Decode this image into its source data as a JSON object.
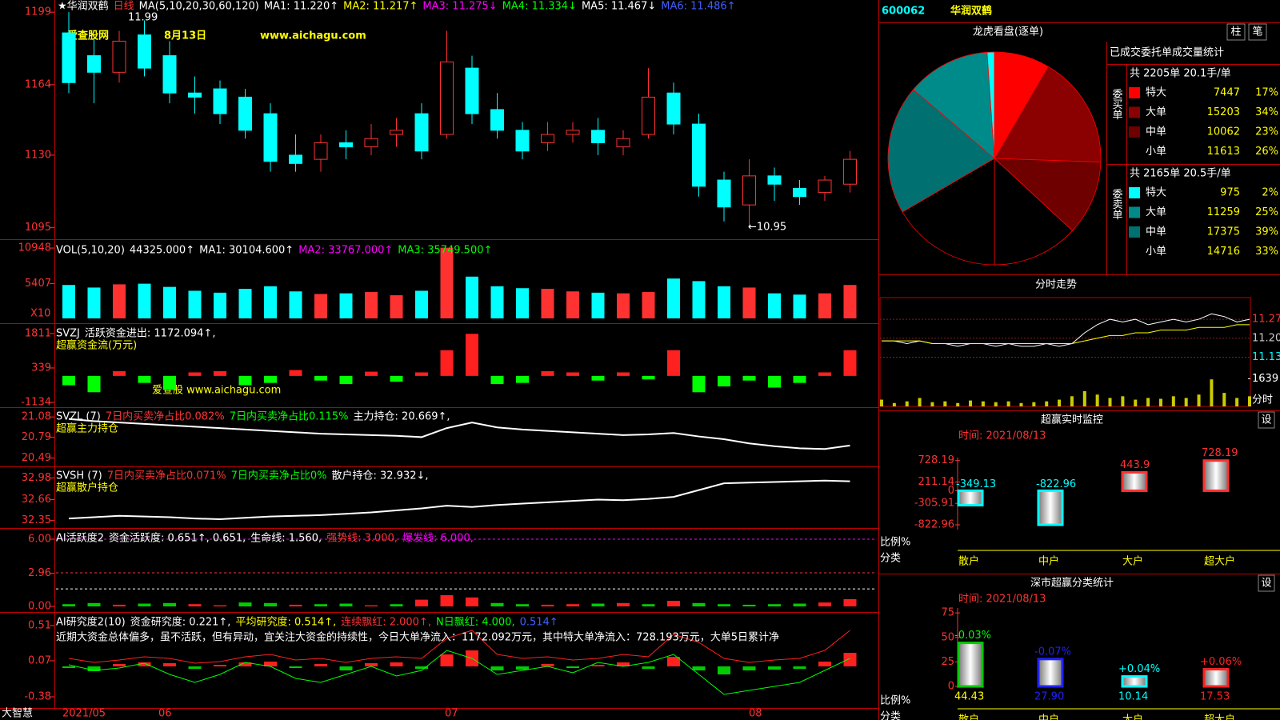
{
  "header": {
    "stock_name": "★华润双鹤",
    "period": "日线",
    "ma_params": "MA(5,10,20,30,60,120)",
    "ma": [
      {
        "text": "MA1: 11.220↑",
        "color": "#ffffff"
      },
      {
        "text": "MA2: 11.217↑",
        "color": "#ffff00"
      },
      {
        "text": "MA3: 11.275↓",
        "color": "#ff00ff"
      },
      {
        "text": "MA4: 11.334↓",
        "color": "#00ff00"
      },
      {
        "text": "MA5: 11.467↓",
        "color": "#ffffff"
      },
      {
        "text": "MA6: 11.486↑",
        "color": "#4060ff"
      }
    ]
  },
  "watermark": {
    "site": "爱查股网",
    "date": "8月13日",
    "url": "www.aichagu.com",
    "small": "爱查股 www.aichagu.com"
  },
  "price_chart": {
    "type": "candlestick",
    "ylim": [
      1091,
      1201
    ],
    "yticks": [
      1199,
      1164,
      1130,
      1095
    ],
    "high_label": "11.99",
    "low_label": "←10.95",
    "up_color": "#ff3232",
    "down_color": "#00ffff",
    "open": [
      1189,
      1178,
      1170,
      1188,
      1178,
      1160,
      1162,
      1158,
      1150,
      1130,
      1128,
      1136,
      1134,
      1140,
      1150,
      1140,
      1172,
      1152,
      1142,
      1136,
      1140,
      1142,
      1134,
      1140,
      1160,
      1145,
      1118,
      1106,
      1120,
      1114,
      1112,
      1116
    ],
    "close": [
      1165,
      1170,
      1185,
      1172,
      1160,
      1158,
      1150,
      1142,
      1127,
      1126,
      1136,
      1134,
      1138,
      1142,
      1132,
      1175,
      1150,
      1142,
      1132,
      1140,
      1142,
      1136,
      1138,
      1158,
      1145,
      1115,
      1105,
      1120,
      1116,
      1110,
      1118,
      1128
    ],
    "high": [
      1199,
      1186,
      1190,
      1195,
      1185,
      1168,
      1166,
      1162,
      1155,
      1140,
      1140,
      1142,
      1145,
      1148,
      1155,
      1190,
      1178,
      1160,
      1146,
      1146,
      1146,
      1148,
      1142,
      1172,
      1165,
      1150,
      1122,
      1128,
      1124,
      1118,
      1120,
      1132
    ],
    "low": [
      1160,
      1155,
      1165,
      1168,
      1155,
      1150,
      1145,
      1138,
      1122,
      1122,
      1122,
      1128,
      1130,
      1134,
      1128,
      1138,
      1145,
      1138,
      1128,
      1132,
      1136,
      1130,
      1130,
      1138,
      1140,
      1110,
      1098,
      1095,
      1108,
      1106,
      1108,
      1112
    ]
  },
  "vol": {
    "type": "bar",
    "label": "VOL(5,10,20)",
    "unit": "X10",
    "ylim": [
      0,
      11700
    ],
    "yticks": [
      10948,
      5407
    ],
    "items": [
      {
        "text": "44325.000↑",
        "color": "#ffffff"
      },
      {
        "text": "MA1: 30104.600↑",
        "color": "#ffffff"
      },
      {
        "text": "MA2: 33767.000↑",
        "color": "#ff00ff"
      },
      {
        "text": "MA3: 35749.500↑",
        "color": "#00ff00"
      }
    ],
    "values": [
      5200,
      4800,
      5300,
      5400,
      4900,
      4300,
      4000,
      4600,
      5000,
      4200,
      3800,
      3900,
      4100,
      3600,
      4300,
      11000,
      6500,
      5000,
      4700,
      4600,
      4200,
      4000,
      3900,
      4100,
      6200,
      5800,
      5000,
      4800,
      3900,
      3700,
      3900,
      5200
    ]
  },
  "svzj": {
    "type": "bar",
    "label": "SVZJ",
    "title": "超赢资金流(万元)",
    "ylim": [
      -1340,
      2255
    ],
    "yticks": [
      1811,
      339,
      -1134
    ],
    "items": [
      {
        "text": "活跃资金进出: 1172.094↑,",
        "color": "#ffffff"
      }
    ],
    "values": [
      -400,
      -700,
      200,
      -300,
      -600,
      150,
      200,
      -400,
      -300,
      250,
      -200,
      -350,
      180,
      -250,
      150,
      1100,
      1800,
      -350,
      -300,
      200,
      150,
      -200,
      150,
      -150,
      1100,
      -700,
      -450,
      -200,
      -500,
      -300,
      150,
      1100
    ]
  },
  "svzl": {
    "type": "line",
    "label": "SVZL (7)",
    "title": "超赢主力持仓",
    "ylim": [
      20.37,
      21.22
    ],
    "yticks": [
      21.08,
      20.79,
      20.49
    ],
    "items": [
      {
        "text": "7日内买卖净占比0.082%",
        "color": "#ff3232"
      },
      {
        "text": "7日内买卖净占比0.115%",
        "color": "#00ff00"
      },
      {
        "text": "主力持仓: 20.669↑,",
        "color": "#ffffff"
      }
    ],
    "values": [
      21.05,
      21.02,
      21.0,
      20.98,
      20.96,
      20.94,
      20.92,
      20.9,
      20.88,
      20.86,
      20.84,
      20.83,
      20.82,
      20.81,
      20.79,
      20.92,
      21.0,
      20.93,
      20.9,
      20.88,
      20.86,
      20.84,
      20.82,
      20.83,
      20.85,
      20.8,
      20.76,
      20.7,
      20.66,
      20.63,
      20.62,
      20.67
    ]
  },
  "svsh": {
    "type": "line",
    "label": "SVSH (7)",
    "title": "超赢散户持仓",
    "ylim": [
      32.24,
      33.15
    ],
    "yticks": [
      32.98,
      32.66,
      32.35
    ],
    "items": [
      {
        "text": "7日内买卖净占比0.071%",
        "color": "#ff3232"
      },
      {
        "text": "7日内买卖净占比0%",
        "color": "#00ff00"
      },
      {
        "text": "散户持仓: 32.932↓,",
        "color": "#ffffff"
      }
    ],
    "values": [
      32.38,
      32.4,
      32.42,
      32.41,
      32.4,
      32.38,
      32.37,
      32.39,
      32.41,
      32.42,
      32.43,
      32.45,
      32.47,
      32.5,
      32.53,
      32.57,
      32.55,
      32.58,
      32.6,
      32.62,
      32.64,
      32.66,
      32.65,
      32.67,
      32.7,
      32.8,
      32.9,
      32.91,
      32.92,
      32.93,
      32.94,
      32.93
    ]
  },
  "ai_active": {
    "type": "bar",
    "label": "AI活跃度2",
    "ylim": [
      -0.5,
      7.0
    ],
    "yticks": [
      {
        "value": 6,
        "label": "6.00"
      },
      2.96,
      {
        "value": 0,
        "label": "0.00"
      }
    ],
    "items": [
      {
        "text": "资金活跃度: 0.651↑, 0.651,",
        "color": "#ffffff"
      },
      {
        "text": "生命线: 1.560,",
        "color": "#ffffff",
        "value": 1.56
      },
      {
        "text": "强势线: 3.000,",
        "color": "#ff3232",
        "value": 3
      },
      {
        "text": "爆发线: 6.000,",
        "color": "#ff00ff",
        "value": 6
      }
    ],
    "values": [
      0.2,
      0.3,
      0.15,
      0.25,
      0.3,
      0.2,
      0.1,
      0.35,
      0.3,
      0.15,
      0.2,
      0.25,
      0.1,
      0.2,
      0.6,
      1.0,
      0.8,
      0.3,
      0.2,
      0.15,
      0.2,
      0.25,
      0.3,
      0.2,
      0.5,
      0.3,
      0.2,
      0.15,
      0.2,
      0.25,
      0.35,
      0.65
    ]
  },
  "ai_research": {
    "type": "bar",
    "label": "AI研究度2(10)",
    "ylim": [
      -0.52,
      0.68
    ],
    "yticks": [
      0.51,
      0.07,
      -0.38
    ],
    "items": [
      {
        "text": "资金研究度: 0.221↑,",
        "color": "#ffffff"
      },
      {
        "text": "平均研究度: 0.514↑,",
        "color": "#ffff00"
      },
      {
        "text": "连续飘红: 2.000↑,",
        "color": "#ff3232"
      },
      {
        "text": "N日飘红: 4.000,",
        "color": "#00ff00"
      },
      {
        "text": "0.514↑",
        "color": "#4060ff"
      }
    ],
    "comment": "近期大资金总体偏多，虽不活跃，但有异动，宜关注大资金的持续性，今日大单净流入：1172.092万元，其中特大单净流入：728.193万元，大单5日累计净",
    "values": [
      -0.02,
      -0.06,
      0.03,
      0.05,
      0.04,
      -0.03,
      0.02,
      0.05,
      0.06,
      -0.02,
      0.03,
      -0.05,
      0.04,
      0.05,
      -0.03,
      0.15,
      0.2,
      -0.05,
      -0.04,
      0.03,
      -0.02,
      0.02,
      0.05,
      -0.03,
      0.12,
      -0.05,
      -0.1,
      -0.05,
      -0.04,
      -0.03,
      0.06,
      0.17
    ],
    "line_green": [
      0.02,
      -0.05,
      -0.02,
      0.04,
      -0.1,
      -0.2,
      -0.1,
      0.05,
      0.0,
      -0.15,
      -0.2,
      -0.1,
      0.0,
      -0.12,
      -0.05,
      0.2,
      0.1,
      -0.1,
      -0.05,
      0.0,
      -0.08,
      0.05,
      0.0,
      0.05,
      0.15,
      -0.1,
      -0.35,
      -0.3,
      -0.25,
      -0.2,
      -0.05,
      0.1
    ],
    "line_red": [
      0.1,
      0.05,
      0.08,
      0.12,
      0.1,
      0.04,
      0.06,
      0.12,
      0.15,
      0.08,
      0.1,
      0.05,
      0.1,
      0.12,
      0.1,
      0.35,
      0.45,
      0.15,
      0.1,
      0.12,
      0.08,
      0.1,
      0.15,
      0.12,
      0.4,
      0.3,
      0.1,
      0.05,
      0.08,
      0.1,
      0.2,
      0.45
    ]
  },
  "footer": {
    "brand": "大智慧",
    "dates": [
      "2021/05",
      "06",
      "07",
      "08"
    ]
  },
  "quote": {
    "code": "600062",
    "name": "华润双鹤"
  },
  "dragon": {
    "type": "pie",
    "title": "龙虎看盘(逐单)",
    "buttons": [
      "柱",
      "笔"
    ],
    "table_title": "已成交委托单成交量统计",
    "buy": {
      "summary": "共 2205单 20.1手/单",
      "side": "委买单",
      "rows": [
        {
          "name": "特大",
          "value": 7447,
          "pct": "17%",
          "color": "#ff0000"
        },
        {
          "name": "大单",
          "value": 15203,
          "pct": "34%",
          "color": "#8b0000"
        },
        {
          "name": "中单",
          "value": 10062,
          "pct": "23%",
          "color": "#6e0000"
        },
        {
          "name": "小单",
          "value": 11613,
          "pct": "26%",
          "color": "#000000"
        }
      ]
    },
    "sell": {
      "summary": "共 2165单 20.5手/单",
      "side": "委卖单",
      "rows": [
        {
          "name": "特大",
          "value": 975,
          "pct": "2%",
          "color": "#00ffff"
        },
        {
          "name": "大单",
          "value": 11259,
          "pct": "25%",
          "color": "#008b8b"
        },
        {
          "name": "中单",
          "value": 17375,
          "pct": "39%",
          "color": "#007070"
        },
        {
          "name": "小单",
          "value": 14716,
          "pct": "33%",
          "color": "#000000"
        }
      ]
    }
  },
  "intraday": {
    "type": "line",
    "title": "分时走势",
    "ylim": [
      11.09,
      11.35
    ],
    "yticks": [
      11.27,
      {
        "value": 11.2,
        "label": "11.20"
      },
      11.13
    ],
    "vol_ylim": [
      0,
      1800
    ],
    "vol_ticks": [
      1639
    ],
    "vol_unit": "分时",
    "price": [
      11.19,
      11.19,
      11.18,
      11.19,
      11.18,
      11.18,
      11.17,
      11.18,
      11.18,
      11.17,
      11.18,
      11.17,
      11.17,
      11.18,
      11.17,
      11.18,
      11.22,
      11.25,
      11.27,
      11.26,
      11.27,
      11.25,
      11.26,
      11.27,
      11.26,
      11.27,
      11.29,
      11.28,
      11.26,
      11.27
    ],
    "avg": [
      11.19,
      11.19,
      11.19,
      11.19,
      11.18,
      11.18,
      11.18,
      11.18,
      11.18,
      11.18,
      11.18,
      11.18,
      11.18,
      11.18,
      11.18,
      11.18,
      11.19,
      11.2,
      11.21,
      11.21,
      11.22,
      11.22,
      11.23,
      11.23,
      11.23,
      11.24,
      11.24,
      11.24,
      11.25,
      11.25
    ],
    "volume": [
      400,
      200,
      300,
      500,
      250,
      300,
      200,
      350,
      300,
      250,
      300,
      200,
      250,
      300,
      400,
      600,
      900,
      700,
      500,
      600,
      400,
      500,
      450,
      600,
      500,
      700,
      1600,
      800,
      500,
      600
    ]
  },
  "monitor": {
    "type": "bar",
    "title": "超赢实时监控",
    "button": "设",
    "time": "时间: 2021/08/13",
    "ylim": [
      -900,
      800
    ],
    "yticks": [
      728.19,
      211.14,
      0,
      -305.91,
      -822.96
    ],
    "y_label": "比例%",
    "x_label": "分类",
    "categories": [
      "散户",
      "中户",
      "大户",
      "超大户"
    ],
    "values": [
      -349.13,
      -822.96,
      443.9,
      728.19
    ]
  },
  "classify": {
    "type": "bar",
    "title": "深市超赢分类统计",
    "button": "设",
    "time": "时间: 2021/08/13",
    "ylim": [
      0,
      80
    ],
    "yticks": [
      75,
      50,
      25,
      0
    ],
    "y_label": "比例%",
    "x_label": "分类",
    "categories": [
      "散户",
      "中户",
      "大户",
      "超大户"
    ],
    "values": [
      44.43,
      27.9,
      10.14,
      17.53
    ],
    "value_labels": [
      "44.43",
      "27.90",
      "10.14",
      "17.53"
    ],
    "change_labels": [
      "-0.03%",
      "-0.07%",
      "+0.04%",
      "+0.06%"
    ],
    "colors": [
      "#00cc00",
      "#2020ff",
      "#00ffff",
      "#ff2020"
    ]
  }
}
